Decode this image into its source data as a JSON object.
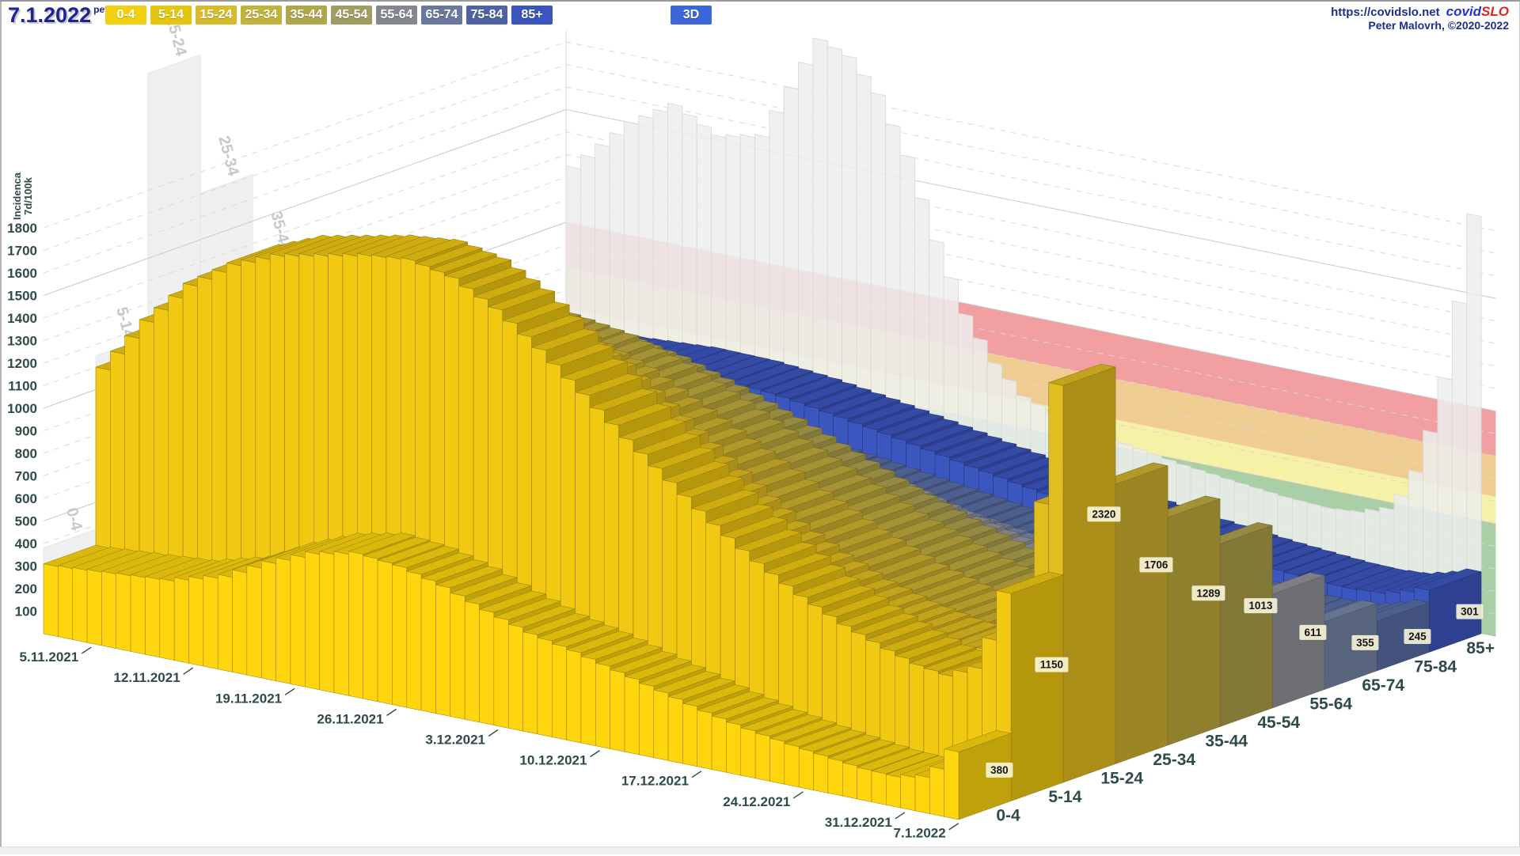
{
  "header": {
    "date": "7.1.2022",
    "weekday": "pet",
    "view_toggle_label": "3D",
    "view_toggle_color": "#3d66d8",
    "url": "https://covidslo.net",
    "brand_part1": "covid",
    "brand_part1_color": "#2330e0",
    "brand_part2": "SLO",
    "brand_part2_color": "#e02424",
    "credit": "Peter Malovrh, ©2020-2022"
  },
  "age_buttons": [
    {
      "label": "0-4",
      "color": "#f2d010"
    },
    {
      "label": "5-14",
      "color": "#e7c50f"
    },
    {
      "label": "15-24",
      "color": "#d6bc2a"
    },
    {
      "label": "25-34",
      "color": "#c3b23b"
    },
    {
      "label": "35-44",
      "color": "#b0a74c"
    },
    {
      "label": "45-54",
      "color": "#a09d62"
    },
    {
      "label": "55-64",
      "color": "#84878e"
    },
    {
      "label": "65-74",
      "color": "#68789f"
    },
    {
      "label": "75-84",
      "color": "#4c64a4"
    },
    {
      "label": "85+",
      "color": "#3a55bd"
    }
  ],
  "chart_data": {
    "type": "bar",
    "projection_style": "3d-oblique",
    "title": "",
    "ylabel_line1": "7d/100k",
    "ylabel_line2": "Incidenca",
    "y_ticks": [
      100,
      200,
      300,
      400,
      500,
      600,
      700,
      800,
      900,
      1000,
      1100,
      1200,
      1300,
      1400,
      1500,
      1600,
      1700,
      1800
    ],
    "y_solid_gridlines": [
      500,
      1000,
      1500
    ],
    "ylim": [
      0,
      1850
    ],
    "x_tick_dates": [
      "5.11.2021",
      "12.11.2021",
      "19.11.2021",
      "26.11.2021",
      "3.12.2021",
      "10.12.2021",
      "17.12.2021",
      "24.12.2021",
      "31.12.2021",
      "7.1.2022"
    ],
    "x_days_total": 64,
    "depth_categories": [
      "0-4",
      "5-14",
      "15-24",
      "25-34",
      "35-44",
      "45-54",
      "55-64",
      "65-74",
      "75-84",
      "85+"
    ],
    "today_values": [
      380,
      1150,
      2320,
      1706,
      1289,
      1013,
      611,
      355,
      245,
      301
    ],
    "series": [
      {
        "name": "0-4",
        "color": "#ffd60e",
        "today": 380,
        "points": [
          [
            0,
            310
          ],
          [
            4,
            330
          ],
          [
            8,
            350
          ],
          [
            12,
            420
          ],
          [
            15,
            520
          ],
          [
            18,
            600
          ],
          [
            21,
            640
          ],
          [
            24,
            620
          ],
          [
            27,
            570
          ],
          [
            30,
            500
          ],
          [
            33,
            440
          ],
          [
            36,
            400
          ],
          [
            39,
            350
          ],
          [
            42,
            300
          ],
          [
            45,
            250
          ],
          [
            48,
            210
          ],
          [
            51,
            180
          ],
          [
            54,
            155
          ],
          [
            56,
            140
          ],
          [
            58,
            135
          ],
          [
            60,
            160
          ],
          [
            61,
            210
          ],
          [
            62,
            300
          ],
          [
            63,
            380
          ]
        ]
      },
      {
        "name": "5-14",
        "color": "#f1c913",
        "today": 1150,
        "points": [
          [
            0,
            1100
          ],
          [
            3,
            1350
          ],
          [
            6,
            1550
          ],
          [
            9,
            1680
          ],
          [
            12,
            1760
          ],
          [
            15,
            1800
          ],
          [
            18,
            1840
          ],
          [
            21,
            1860
          ],
          [
            24,
            1820
          ],
          [
            27,
            1720
          ],
          [
            30,
            1580
          ],
          [
            33,
            1420
          ],
          [
            36,
            1260
          ],
          [
            39,
            1110
          ],
          [
            42,
            960
          ],
          [
            45,
            830
          ],
          [
            48,
            720
          ],
          [
            51,
            630
          ],
          [
            54,
            560
          ],
          [
            56,
            520
          ],
          [
            58,
            500
          ],
          [
            60,
            560
          ],
          [
            61,
            700
          ],
          [
            62,
            920
          ],
          [
            63,
            1150
          ]
        ]
      },
      {
        "name": "15-24",
        "color": "#e2bd1f",
        "today": 2320,
        "points": [
          [
            0,
            800
          ],
          [
            4,
            950
          ],
          [
            8,
            1120
          ],
          [
            12,
            1280
          ],
          [
            16,
            1400
          ],
          [
            20,
            1470
          ],
          [
            23,
            1500
          ],
          [
            26,
            1440
          ],
          [
            29,
            1340
          ],
          [
            32,
            1200
          ],
          [
            35,
            1060
          ],
          [
            38,
            920
          ],
          [
            41,
            790
          ],
          [
            44,
            690
          ],
          [
            47,
            610
          ],
          [
            50,
            555
          ],
          [
            53,
            520
          ],
          [
            55,
            505
          ],
          [
            57,
            520
          ],
          [
            59,
            640
          ],
          [
            60,
            840
          ],
          [
            61,
            1220
          ],
          [
            62,
            1760
          ],
          [
            63,
            2320
          ]
        ]
      },
      {
        "name": "25-34",
        "color": "#d0b32e",
        "today": 1706,
        "points": [
          [
            0,
            900
          ],
          [
            5,
            1060
          ],
          [
            10,
            1200
          ],
          [
            15,
            1300
          ],
          [
            19,
            1340
          ],
          [
            23,
            1300
          ],
          [
            27,
            1210
          ],
          [
            31,
            1080
          ],
          [
            35,
            950
          ],
          [
            39,
            820
          ],
          [
            43,
            700
          ],
          [
            47,
            600
          ],
          [
            51,
            530
          ],
          [
            54,
            490
          ],
          [
            56,
            480
          ],
          [
            58,
            500
          ],
          [
            60,
            640
          ],
          [
            61,
            860
          ],
          [
            62,
            1240
          ],
          [
            63,
            1706
          ]
        ]
      },
      {
        "name": "35-44",
        "color": "#bfaa3c",
        "today": 1289,
        "points": [
          [
            0,
            950
          ],
          [
            5,
            1090
          ],
          [
            10,
            1190
          ],
          [
            14,
            1240
          ],
          [
            18,
            1250
          ],
          [
            22,
            1210
          ],
          [
            26,
            1130
          ],
          [
            30,
            1020
          ],
          [
            34,
            900
          ],
          [
            38,
            790
          ],
          [
            42,
            680
          ],
          [
            46,
            590
          ],
          [
            50,
            515
          ],
          [
            53,
            475
          ],
          [
            55,
            460
          ],
          [
            57,
            465
          ],
          [
            59,
            520
          ],
          [
            60,
            610
          ],
          [
            61,
            780
          ],
          [
            62,
            1010
          ],
          [
            63,
            1289
          ]
        ]
      },
      {
        "name": "45-54",
        "color": "#ada14b",
        "today": 1013,
        "points": [
          [
            0,
            850
          ],
          [
            5,
            960
          ],
          [
            10,
            1050
          ],
          [
            14,
            1090
          ],
          [
            18,
            1080
          ],
          [
            22,
            1030
          ],
          [
            26,
            950
          ],
          [
            30,
            860
          ],
          [
            34,
            760
          ],
          [
            38,
            660
          ],
          [
            42,
            570
          ],
          [
            46,
            490
          ],
          [
            50,
            425
          ],
          [
            53,
            390
          ],
          [
            55,
            375
          ],
          [
            57,
            380
          ],
          [
            59,
            430
          ],
          [
            60,
            510
          ],
          [
            61,
            640
          ],
          [
            62,
            810
          ],
          [
            63,
            1013
          ]
        ]
      },
      {
        "name": "55-64",
        "color": "#93949a",
        "today": 611,
        "points": [
          [
            0,
            620
          ],
          [
            5,
            700
          ],
          [
            10,
            760
          ],
          [
            14,
            790
          ],
          [
            18,
            780
          ],
          [
            22,
            740
          ],
          [
            26,
            680
          ],
          [
            30,
            610
          ],
          [
            34,
            540
          ],
          [
            38,
            470
          ],
          [
            42,
            405
          ],
          [
            46,
            350
          ],
          [
            50,
            305
          ],
          [
            53,
            280
          ],
          [
            55,
            268
          ],
          [
            57,
            268
          ],
          [
            59,
            300
          ],
          [
            60,
            350
          ],
          [
            61,
            420
          ],
          [
            62,
            505
          ],
          [
            63,
            611
          ]
        ]
      },
      {
        "name": "65-74",
        "color": "#7787a6",
        "today": 355,
        "points": [
          [
            0,
            420
          ],
          [
            5,
            470
          ],
          [
            10,
            505
          ],
          [
            14,
            520
          ],
          [
            18,
            510
          ],
          [
            22,
            480
          ],
          [
            26,
            440
          ],
          [
            30,
            395
          ],
          [
            34,
            350
          ],
          [
            38,
            308
          ],
          [
            42,
            270
          ],
          [
            46,
            238
          ],
          [
            50,
            212
          ],
          [
            53,
            196
          ],
          [
            55,
            188
          ],
          [
            57,
            186
          ],
          [
            59,
            200
          ],
          [
            60,
            222
          ],
          [
            61,
            256
          ],
          [
            62,
            300
          ],
          [
            63,
            355
          ]
        ]
      },
      {
        "name": "75-84",
        "color": "#5a6ea6",
        "today": 245,
        "points": [
          [
            0,
            350
          ],
          [
            5,
            390
          ],
          [
            10,
            415
          ],
          [
            14,
            425
          ],
          [
            18,
            415
          ],
          [
            22,
            392
          ],
          [
            26,
            360
          ],
          [
            30,
            325
          ],
          [
            34,
            290
          ],
          [
            38,
            257
          ],
          [
            42,
            228
          ],
          [
            46,
            203
          ],
          [
            50,
            183
          ],
          [
            53,
            170
          ],
          [
            55,
            163
          ],
          [
            57,
            160
          ],
          [
            59,
            168
          ],
          [
            60,
            180
          ],
          [
            61,
            198
          ],
          [
            62,
            220
          ],
          [
            63,
            245
          ]
        ]
      },
      {
        "name": "85+",
        "color": "#3c56c0",
        "today": 301,
        "points": [
          [
            0,
            520
          ],
          [
            5,
            560
          ],
          [
            10,
            580
          ],
          [
            14,
            575
          ],
          [
            18,
            550
          ],
          [
            22,
            512
          ],
          [
            26,
            468
          ],
          [
            30,
            422
          ],
          [
            34,
            378
          ],
          [
            38,
            336
          ],
          [
            42,
            298
          ],
          [
            46,
            266
          ],
          [
            50,
            240
          ],
          [
            53,
            224
          ],
          [
            55,
            215
          ],
          [
            57,
            212
          ],
          [
            59,
            220
          ],
          [
            60,
            235
          ],
          [
            61,
            252
          ],
          [
            62,
            275
          ],
          [
            63,
            301
          ]
        ]
      }
    ],
    "background_series": {
      "name": "all-ages-reference",
      "color": "#ededed",
      "points": [
        [
          0,
          1250
        ],
        [
          4,
          1500
        ],
        [
          7,
          1620
        ],
        [
          10,
          1520
        ],
        [
          13,
          1560
        ],
        [
          15,
          1800
        ],
        [
          17,
          2040
        ],
        [
          19,
          1990
        ],
        [
          21,
          1850
        ],
        [
          23,
          1600
        ],
        [
          25,
          1250
        ],
        [
          27,
          950
        ],
        [
          29,
          760
        ],
        [
          31,
          640
        ],
        [
          34,
          570
        ],
        [
          38,
          520
        ],
        [
          42,
          480
        ],
        [
          46,
          450
        ],
        [
          49,
          430
        ],
        [
          52,
          420
        ],
        [
          54,
          430
        ],
        [
          56,
          470
        ],
        [
          57,
          540
        ],
        [
          58,
          660
        ],
        [
          59,
          850
        ],
        [
          60,
          1100
        ],
        [
          61,
          1450
        ],
        [
          62,
          1850
        ],
        [
          63,
          2280
        ]
      ]
    },
    "risk_bands": [
      {
        "name": "green",
        "from": 0,
        "to": 500,
        "color": "#a5cba0"
      },
      {
        "name": "yellow",
        "from": 500,
        "to": 620,
        "color": "#f4f0a2"
      },
      {
        "name": "orange",
        "from": 620,
        "to": 800,
        "color": "#eeca8c"
      },
      {
        "name": "red",
        "from": 800,
        "to": 1000,
        "color": "#f09a9c"
      }
    ],
    "legend_position": "top-toolbar",
    "grid": true
  }
}
